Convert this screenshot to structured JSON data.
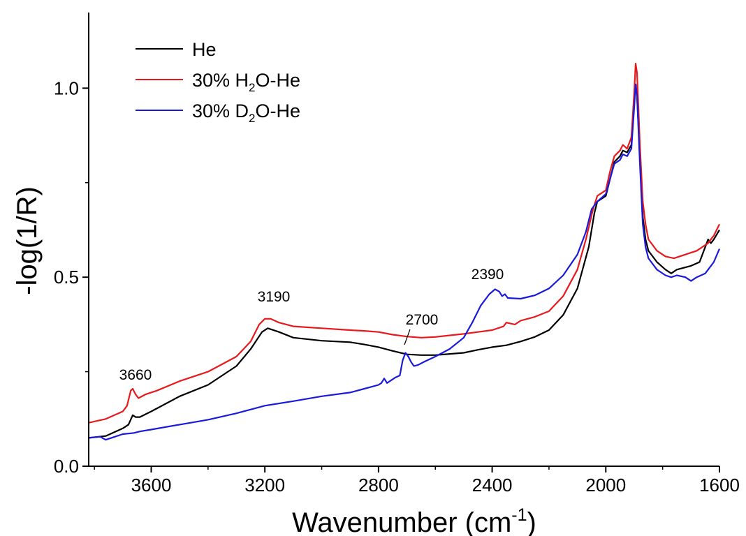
{
  "chart_data": {
    "type": "line",
    "xlabel_main": "Wavenumber (cm",
    "xlabel_sup": "-1",
    "xlabel_end": ")",
    "ylabel": "-log(1/R)",
    "xlim": [
      3820,
      1600
    ],
    "ylim": [
      0,
      1.2
    ],
    "x_ticks": [
      3600,
      3200,
      2800,
      2400,
      2000,
      1600
    ],
    "x_tick_labels": [
      "3600",
      "3200",
      "2800",
      "2400",
      "2000",
      "1600"
    ],
    "y_ticks": [
      0.0,
      0.5,
      1.0
    ],
    "y_tick_labels": [
      "0.0",
      "0.5",
      "1.0"
    ],
    "legend": [
      {
        "base": "He",
        "sub": "",
        "rest": "",
        "color": "#000000"
      },
      {
        "base": "30% H",
        "sub": "2",
        "rest": "O-He",
        "color": "#e8191c"
      },
      {
        "base": "30% D",
        "sub": "2",
        "rest": "O-He",
        "color": "#1a1adb"
      }
    ],
    "annotations": [
      "3660",
      "3190",
      "2700",
      "2390"
    ],
    "series": [
      {
        "name": "He",
        "color": "#000000",
        "points": [
          [
            3820,
            0.075
          ],
          [
            3760,
            0.08
          ],
          [
            3700,
            0.1
          ],
          [
            3680,
            0.11
          ],
          [
            3665,
            0.135
          ],
          [
            3655,
            0.13
          ],
          [
            3640,
            0.13
          ],
          [
            3600,
            0.145
          ],
          [
            3500,
            0.185
          ],
          [
            3400,
            0.215
          ],
          [
            3300,
            0.265
          ],
          [
            3250,
            0.31
          ],
          [
            3210,
            0.355
          ],
          [
            3190,
            0.365
          ],
          [
            3150,
            0.355
          ],
          [
            3100,
            0.34
          ],
          [
            3000,
            0.332
          ],
          [
            2900,
            0.328
          ],
          [
            2850,
            0.322
          ],
          [
            2800,
            0.315
          ],
          [
            2750,
            0.305
          ],
          [
            2700,
            0.296
          ],
          [
            2650,
            0.294
          ],
          [
            2600,
            0.294
          ],
          [
            2500,
            0.3
          ],
          [
            2450,
            0.308
          ],
          [
            2400,
            0.315
          ],
          [
            2350,
            0.32
          ],
          [
            2300,
            0.33
          ],
          [
            2250,
            0.342
          ],
          [
            2200,
            0.36
          ],
          [
            2150,
            0.4
          ],
          [
            2100,
            0.47
          ],
          [
            2060,
            0.58
          ],
          [
            2040,
            0.67
          ],
          [
            2030,
            0.7
          ],
          [
            2000,
            0.715
          ],
          [
            1985,
            0.76
          ],
          [
            1970,
            0.805
          ],
          [
            1950,
            0.82
          ],
          [
            1940,
            0.835
          ],
          [
            1925,
            0.83
          ],
          [
            1910,
            0.85
          ],
          [
            1900,
            0.96
          ],
          [
            1895,
            1.01
          ],
          [
            1890,
            0.98
          ],
          [
            1880,
            0.82
          ],
          [
            1870,
            0.66
          ],
          [
            1860,
            0.6
          ],
          [
            1850,
            0.57
          ],
          [
            1820,
            0.54
          ],
          [
            1790,
            0.52
          ],
          [
            1770,
            0.51
          ],
          [
            1750,
            0.52
          ],
          [
            1700,
            0.53
          ],
          [
            1670,
            0.54
          ],
          [
            1650,
            0.58
          ],
          [
            1640,
            0.6
          ],
          [
            1630,
            0.59
          ],
          [
            1620,
            0.6
          ],
          [
            1600,
            0.625
          ]
        ]
      },
      {
        "name": "30% H2O-He",
        "color": "#e8191c",
        "points": [
          [
            3820,
            0.115
          ],
          [
            3760,
            0.125
          ],
          [
            3700,
            0.145
          ],
          [
            3685,
            0.16
          ],
          [
            3672,
            0.2
          ],
          [
            3665,
            0.205
          ],
          [
            3655,
            0.19
          ],
          [
            3645,
            0.18
          ],
          [
            3620,
            0.19
          ],
          [
            3580,
            0.2
          ],
          [
            3500,
            0.225
          ],
          [
            3400,
            0.25
          ],
          [
            3300,
            0.29
          ],
          [
            3250,
            0.33
          ],
          [
            3220,
            0.375
          ],
          [
            3200,
            0.39
          ],
          [
            3180,
            0.39
          ],
          [
            3150,
            0.38
          ],
          [
            3100,
            0.37
          ],
          [
            3000,
            0.365
          ],
          [
            2900,
            0.36
          ],
          [
            2850,
            0.358
          ],
          [
            2800,
            0.355
          ],
          [
            2750,
            0.348
          ],
          [
            2700,
            0.343
          ],
          [
            2650,
            0.34
          ],
          [
            2600,
            0.342
          ],
          [
            2500,
            0.35
          ],
          [
            2450,
            0.355
          ],
          [
            2400,
            0.36
          ],
          [
            2360,
            0.37
          ],
          [
            2350,
            0.38
          ],
          [
            2320,
            0.375
          ],
          [
            2300,
            0.385
          ],
          [
            2250,
            0.395
          ],
          [
            2200,
            0.41
          ],
          [
            2150,
            0.45
          ],
          [
            2100,
            0.52
          ],
          [
            2070,
            0.6
          ],
          [
            2045,
            0.68
          ],
          [
            2030,
            0.715
          ],
          [
            2000,
            0.73
          ],
          [
            1985,
            0.78
          ],
          [
            1970,
            0.82
          ],
          [
            1950,
            0.835
          ],
          [
            1940,
            0.85
          ],
          [
            1925,
            0.84
          ],
          [
            1910,
            0.87
          ],
          [
            1900,
            0.99
          ],
          [
            1895,
            1.065
          ],
          [
            1890,
            1.04
          ],
          [
            1880,
            0.85
          ],
          [
            1870,
            0.7
          ],
          [
            1860,
            0.64
          ],
          [
            1850,
            0.6
          ],
          [
            1820,
            0.57
          ],
          [
            1790,
            0.555
          ],
          [
            1760,
            0.55
          ],
          [
            1720,
            0.56
          ],
          [
            1680,
            0.57
          ],
          [
            1640,
            0.59
          ],
          [
            1620,
            0.61
          ],
          [
            1600,
            0.64
          ]
        ]
      },
      {
        "name": "30% D2O-He",
        "color": "#1a1adb",
        "points": [
          [
            3820,
            0.075
          ],
          [
            3780,
            0.078
          ],
          [
            3760,
            0.07
          ],
          [
            3740,
            0.075
          ],
          [
            3700,
            0.085
          ],
          [
            3660,
            0.088
          ],
          [
            3640,
            0.092
          ],
          [
            3600,
            0.097
          ],
          [
            3500,
            0.11
          ],
          [
            3400,
            0.123
          ],
          [
            3300,
            0.14
          ],
          [
            3200,
            0.16
          ],
          [
            3100,
            0.172
          ],
          [
            3000,
            0.185
          ],
          [
            2900,
            0.195
          ],
          [
            2850,
            0.205
          ],
          [
            2800,
            0.215
          ],
          [
            2790,
            0.22
          ],
          [
            2780,
            0.232
          ],
          [
            2770,
            0.22
          ],
          [
            2760,
            0.225
          ],
          [
            2740,
            0.235
          ],
          [
            2725,
            0.24
          ],
          [
            2715,
            0.28
          ],
          [
            2705,
            0.3
          ],
          [
            2695,
            0.29
          ],
          [
            2685,
            0.275
          ],
          [
            2675,
            0.265
          ],
          [
            2660,
            0.268
          ],
          [
            2640,
            0.276
          ],
          [
            2600,
            0.29
          ],
          [
            2550,
            0.31
          ],
          [
            2500,
            0.34
          ],
          [
            2470,
            0.38
          ],
          [
            2440,
            0.425
          ],
          [
            2410,
            0.455
          ],
          [
            2390,
            0.468
          ],
          [
            2375,
            0.462
          ],
          [
            2365,
            0.45
          ],
          [
            2355,
            0.455
          ],
          [
            2345,
            0.445
          ],
          [
            2300,
            0.443
          ],
          [
            2250,
            0.452
          ],
          [
            2200,
            0.47
          ],
          [
            2150,
            0.505
          ],
          [
            2100,
            0.56
          ],
          [
            2070,
            0.62
          ],
          [
            2050,
            0.68
          ],
          [
            2030,
            0.7
          ],
          [
            2000,
            0.72
          ],
          [
            1985,
            0.76
          ],
          [
            1970,
            0.8
          ],
          [
            1950,
            0.81
          ],
          [
            1940,
            0.825
          ],
          [
            1925,
            0.82
          ],
          [
            1910,
            0.84
          ],
          [
            1900,
            0.95
          ],
          [
            1895,
            1.01
          ],
          [
            1890,
            0.98
          ],
          [
            1880,
            0.8
          ],
          [
            1870,
            0.64
          ],
          [
            1860,
            0.58
          ],
          [
            1850,
            0.55
          ],
          [
            1820,
            0.52
          ],
          [
            1790,
            0.505
          ],
          [
            1770,
            0.5
          ],
          [
            1750,
            0.505
          ],
          [
            1720,
            0.5
          ],
          [
            1700,
            0.49
          ],
          [
            1680,
            0.5
          ],
          [
            1650,
            0.51
          ],
          [
            1620,
            0.54
          ],
          [
            1600,
            0.575
          ]
        ]
      }
    ]
  }
}
